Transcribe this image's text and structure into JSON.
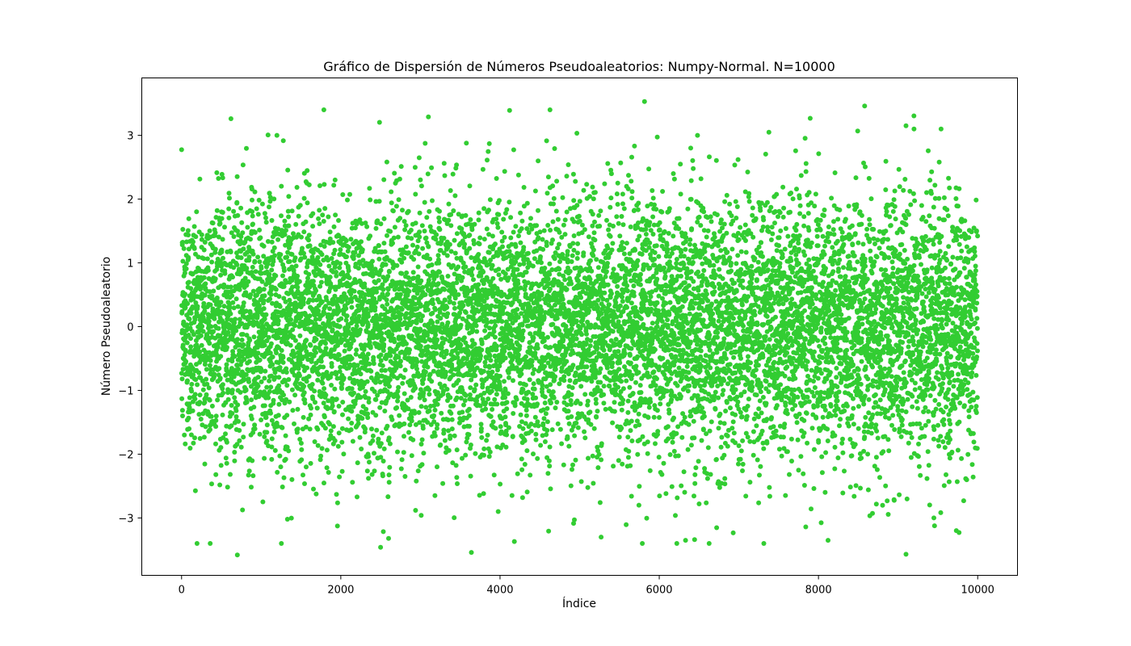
{
  "chart_data": {
    "type": "scatter",
    "title": "Gráfico de Dispersión de Números Pseudoaleatorios: Numpy-Normal. N=10000",
    "xlabel": "Índice",
    "ylabel": "Número Pseudoaleatorio",
    "xlim": [
      -500,
      10500
    ],
    "ylim": [
      -3.9,
      3.9
    ],
    "xticks": [
      0,
      2000,
      4000,
      6000,
      8000,
      10000
    ],
    "xtick_labels": [
      "0",
      "2000",
      "4000",
      "6000",
      "8000",
      "10000"
    ],
    "yticks": [
      -3,
      -2,
      -1,
      0,
      1,
      2,
      3
    ],
    "ytick_labels": [
      "−3",
      "−2",
      "−1",
      "0",
      "1",
      "2",
      "3"
    ],
    "grid": false,
    "marker_color": "#32cd32",
    "series": [
      {
        "n": 10000,
        "distribution": "normal",
        "mean": 0,
        "std": 1,
        "x_start": 0,
        "x_end": 9999,
        "notable_points": [
          [
            5815,
            3.53
          ],
          [
            4120,
            3.39
          ],
          [
            8580,
            3.46
          ],
          [
            620,
            3.26
          ],
          [
            3100,
            3.29
          ],
          [
            9100,
            3.15
          ],
          [
            9200,
            3.1
          ],
          [
            9540,
            3.1
          ],
          [
            700,
            -3.58
          ],
          [
            9100,
            -3.57
          ],
          [
            3640,
            -3.54
          ],
          [
            2500,
            -3.46
          ],
          [
            4180,
            -3.37
          ],
          [
            6330,
            -3.35
          ],
          [
            8120,
            -3.35
          ],
          [
            5270,
            -3.3
          ],
          [
            2600,
            -3.32
          ],
          [
            7840,
            -3.14
          ],
          [
            1330,
            -3.02
          ],
          [
            9450,
            -3.0
          ]
        ]
      }
    ]
  }
}
